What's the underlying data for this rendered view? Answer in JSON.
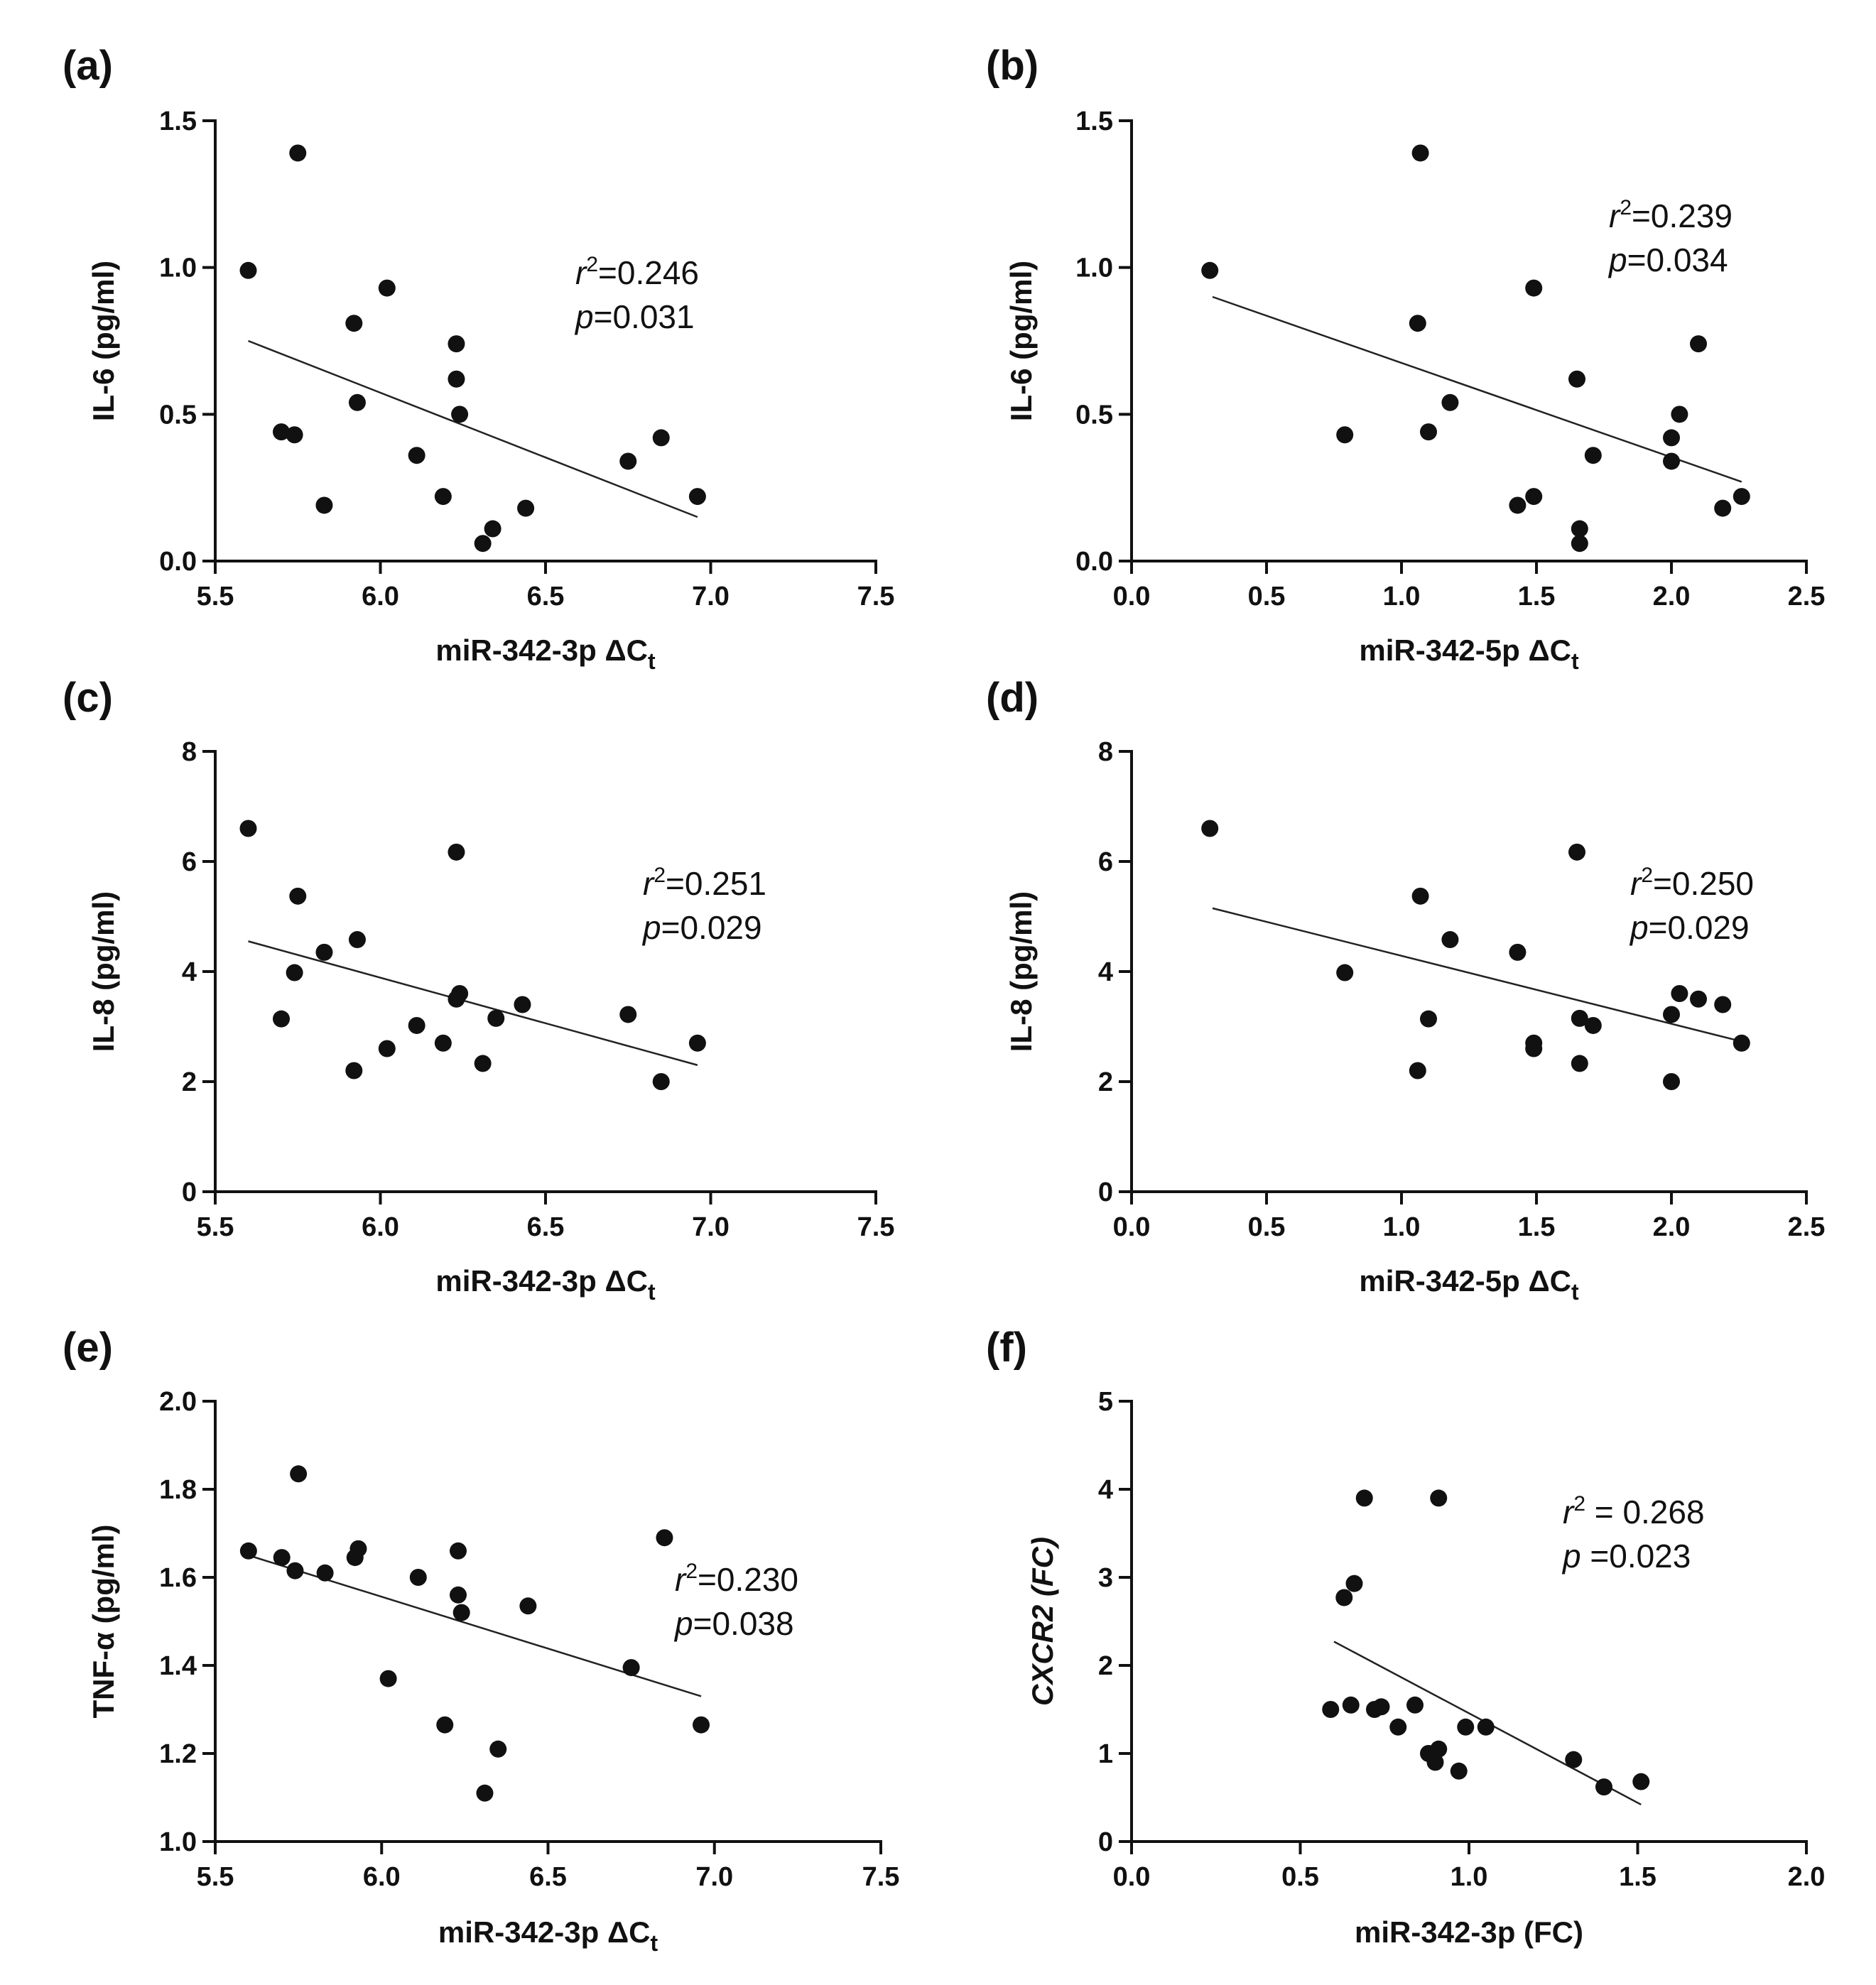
{
  "chart_data": [
    {
      "panel": "(a)",
      "type": "scatter",
      "xlabel": "miR-342-3p ΔC",
      "xlabel_sub": "t",
      "xlabel_italic": false,
      "ylabel": "IL-6  (pg/ml)",
      "ylabel_italic": false,
      "xlim": [
        5.5,
        7.5
      ],
      "ylim": [
        0.0,
        1.5
      ],
      "xticks": [
        5.5,
        6.0,
        6.5,
        7.0,
        7.5
      ],
      "xtick_labels": [
        "5.5",
        "6.0",
        "6.5",
        "7.0",
        "7.5"
      ],
      "yticks": [
        0.0,
        0.5,
        1.0,
        1.5
      ],
      "ytick_labels": [
        "0.0",
        "0.5",
        "1.0",
        "1.5"
      ],
      "stats": {
        "r2": "=0.246",
        "p": "=0.031",
        "spaced": false
      },
      "regression": {
        "x1": 5.6,
        "y1": 0.75,
        "x2": 6.96,
        "y2": 0.15
      },
      "x": [
        5.6,
        5.75,
        5.7,
        5.74,
        5.83,
        5.92,
        5.93,
        6.02,
        6.11,
        6.19,
        6.23,
        6.23,
        6.24,
        6.31,
        6.34,
        6.44,
        6.75,
        6.85,
        6.96
      ],
      "y": [
        0.99,
        1.39,
        0.44,
        0.43,
        0.19,
        0.81,
        0.54,
        0.93,
        0.36,
        0.22,
        0.74,
        0.62,
        0.5,
        0.06,
        0.11,
        0.18,
        0.34,
        0.42,
        0.22
      ]
    },
    {
      "panel": "(b)",
      "type": "scatter",
      "xlabel": "miR-342-5p ΔC",
      "xlabel_sub": "t",
      "xlabel_italic": false,
      "ylabel": "IL-6  (pg/ml)",
      "ylabel_italic": false,
      "xlim": [
        0.0,
        2.5
      ],
      "ylim": [
        0.0,
        1.5
      ],
      "xticks": [
        0.0,
        0.5,
        1.0,
        1.5,
        2.0,
        2.5
      ],
      "xtick_labels": [
        "0.0",
        "0.5",
        "1.0",
        "1.5",
        "2.0",
        "2.5"
      ],
      "yticks": [
        0.0,
        0.5,
        1.0,
        1.5
      ],
      "ytick_labels": [
        "0.0",
        "0.5",
        "1.0",
        "1.5"
      ],
      "stats": {
        "r2": "=0.239",
        "p": "=0.034",
        "spaced": false
      },
      "regression": {
        "x1": 0.3,
        "y1": 0.9,
        "x2": 2.26,
        "y2": 0.27
      },
      "x": [
        0.29,
        1.07,
        1.06,
        0.79,
        1.1,
        1.18,
        1.49,
        1.43,
        1.49,
        1.65,
        1.71,
        1.66,
        1.66,
        2.0,
        2.03,
        2.0,
        2.1,
        2.19,
        2.26
      ],
      "y": [
        0.99,
        1.39,
        0.81,
        0.43,
        0.44,
        0.54,
        0.93,
        0.19,
        0.22,
        0.62,
        0.36,
        0.11,
        0.06,
        0.42,
        0.5,
        0.34,
        0.74,
        0.18,
        0.22
      ]
    },
    {
      "panel": "(c)",
      "type": "scatter",
      "xlabel": "miR-342-3p ΔC",
      "xlabel_sub": "t",
      "xlabel_italic": false,
      "ylabel": "IL-8 (pg/ml)",
      "ylabel_italic": false,
      "xlim": [
        5.5,
        7.5
      ],
      "ylim": [
        0,
        8
      ],
      "xticks": [
        5.5,
        6.0,
        6.5,
        7.0,
        7.5
      ],
      "xtick_labels": [
        "5.5",
        "6.0",
        "6.5",
        "7.0",
        "7.5"
      ],
      "yticks": [
        0,
        2,
        4,
        6,
        8
      ],
      "ytick_labels": [
        "0",
        "2",
        "4",
        "6",
        "8"
      ],
      "stats": {
        "r2": "=0.251",
        "p": "=0.029",
        "spaced": false
      },
      "regression": {
        "x1": 5.6,
        "y1": 4.55,
        "x2": 6.96,
        "y2": 2.3
      },
      "x": [
        5.6,
        5.75,
        5.74,
        5.7,
        5.83,
        5.93,
        5.92,
        6.02,
        6.11,
        6.19,
        6.23,
        6.24,
        6.23,
        6.31,
        6.35,
        6.43,
        6.75,
        6.85,
        6.96
      ],
      "y": [
        6.6,
        5.37,
        3.98,
        3.14,
        4.35,
        4.58,
        2.2,
        2.6,
        3.02,
        2.7,
        6.17,
        3.6,
        3.5,
        2.33,
        3.15,
        3.4,
        3.22,
        2.0,
        2.7
      ]
    },
    {
      "panel": "(d)",
      "type": "scatter",
      "xlabel": "miR-342-5p ΔC",
      "xlabel_sub": "t",
      "xlabel_italic": false,
      "ylabel": "IL-8 (pg/ml)",
      "ylabel_italic": false,
      "xlim": [
        0.0,
        2.5
      ],
      "ylim": [
        0,
        8
      ],
      "xticks": [
        0.0,
        0.5,
        1.0,
        1.5,
        2.0,
        2.5
      ],
      "xtick_labels": [
        "0.0",
        "0.5",
        "1.0",
        "1.5",
        "2.0",
        "2.5"
      ],
      "yticks": [
        0,
        2,
        4,
        6,
        8
      ],
      "ytick_labels": [
        "0",
        "2",
        "4",
        "6",
        "8"
      ],
      "stats": {
        "r2": "=0.250",
        "p": "=0.029",
        "spaced": false
      },
      "regression": {
        "x1": 0.3,
        "y1": 5.15,
        "x2": 2.26,
        "y2": 2.73
      },
      "x": [
        0.29,
        1.07,
        0.79,
        1.18,
        1.1,
        1.06,
        1.43,
        1.49,
        1.49,
        1.65,
        1.66,
        1.71,
        1.66,
        2.03,
        2.1,
        2.19,
        2.0,
        2.0,
        2.26
      ],
      "y": [
        6.6,
        5.37,
        3.98,
        4.58,
        3.14,
        2.2,
        4.35,
        2.7,
        2.6,
        6.17,
        3.15,
        3.02,
        2.33,
        3.6,
        3.5,
        3.4,
        3.22,
        2.0,
        2.7
      ]
    },
    {
      "panel": "(e)",
      "type": "scatter",
      "xlabel": "miR-342-3p ΔC",
      "xlabel_sub": "t",
      "xlabel_italic": false,
      "ylabel": "TNF-α (pg/ml)",
      "ylabel_italic": false,
      "xlim": [
        5.5,
        7.5
      ],
      "ylim": [
        1.0,
        2.0
      ],
      "xticks": [
        5.5,
        6.0,
        6.5,
        7.0,
        7.5
      ],
      "xtick_labels": [
        "5.5",
        "6.0",
        "6.5",
        "7.0",
        "7.5"
      ],
      "yticks": [
        1.0,
        1.2,
        1.4,
        1.6,
        1.8,
        2.0
      ],
      "ytick_labels": [
        "1.0",
        "1.2",
        "1.4",
        "1.6",
        "1.8",
        "2.0"
      ],
      "stats": {
        "r2": "=0.230",
        "p": "=0.038",
        "spaced": false
      },
      "regression": {
        "x1": 5.6,
        "y1": 1.65,
        "x2": 6.96,
        "y2": 1.33
      },
      "x": [
        5.6,
        5.7,
        5.75,
        5.74,
        5.83,
        5.93,
        5.92,
        6.02,
        6.11,
        6.19,
        6.23,
        6.23,
        6.24,
        6.31,
        6.35,
        6.44,
        6.75,
        6.85,
        6.96
      ],
      "y": [
        1.66,
        1.645,
        1.835,
        1.615,
        1.61,
        1.665,
        1.645,
        1.37,
        1.6,
        1.265,
        1.66,
        1.56,
        1.52,
        1.11,
        1.21,
        1.535,
        1.395,
        1.69,
        1.265
      ]
    },
    {
      "panel": "(f)",
      "type": "scatter",
      "xlabel": "miR-342-3p (FC)",
      "xlabel_sub": "",
      "xlabel_italic": false,
      "ylabel": "CXCR2 (FC)",
      "ylabel_italic": true,
      "xlim": [
        0.0,
        2.0
      ],
      "ylim": [
        0,
        5
      ],
      "xticks": [
        0.0,
        0.5,
        1.0,
        1.5,
        2.0
      ],
      "xtick_labels": [
        "0.0",
        "0.5",
        "1.0",
        "1.5",
        "2.0"
      ],
      "yticks": [
        0,
        1,
        2,
        3,
        4,
        5
      ],
      "ytick_labels": [
        "0",
        "1",
        "2",
        "3",
        "4",
        "5"
      ],
      "stats": {
        "r2": " = 0.268",
        "p": " =0.023",
        "spaced": true
      },
      "regression": {
        "x1": 0.6,
        "y1": 2.27,
        "x2": 1.51,
        "y2": 0.42
      },
      "x": [
        0.69,
        0.91,
        0.63,
        0.66,
        0.59,
        0.65,
        0.72,
        0.74,
        0.79,
        0.84,
        0.88,
        0.91,
        0.9,
        0.97,
        0.99,
        1.05,
        1.31,
        1.4,
        1.51
      ],
      "y": [
        3.9,
        3.9,
        2.77,
        2.93,
        1.5,
        1.55,
        1.5,
        1.53,
        1.3,
        1.55,
        1.0,
        1.05,
        0.9,
        0.8,
        1.3,
        1.3,
        0.93,
        0.62,
        0.68
      ]
    }
  ]
}
